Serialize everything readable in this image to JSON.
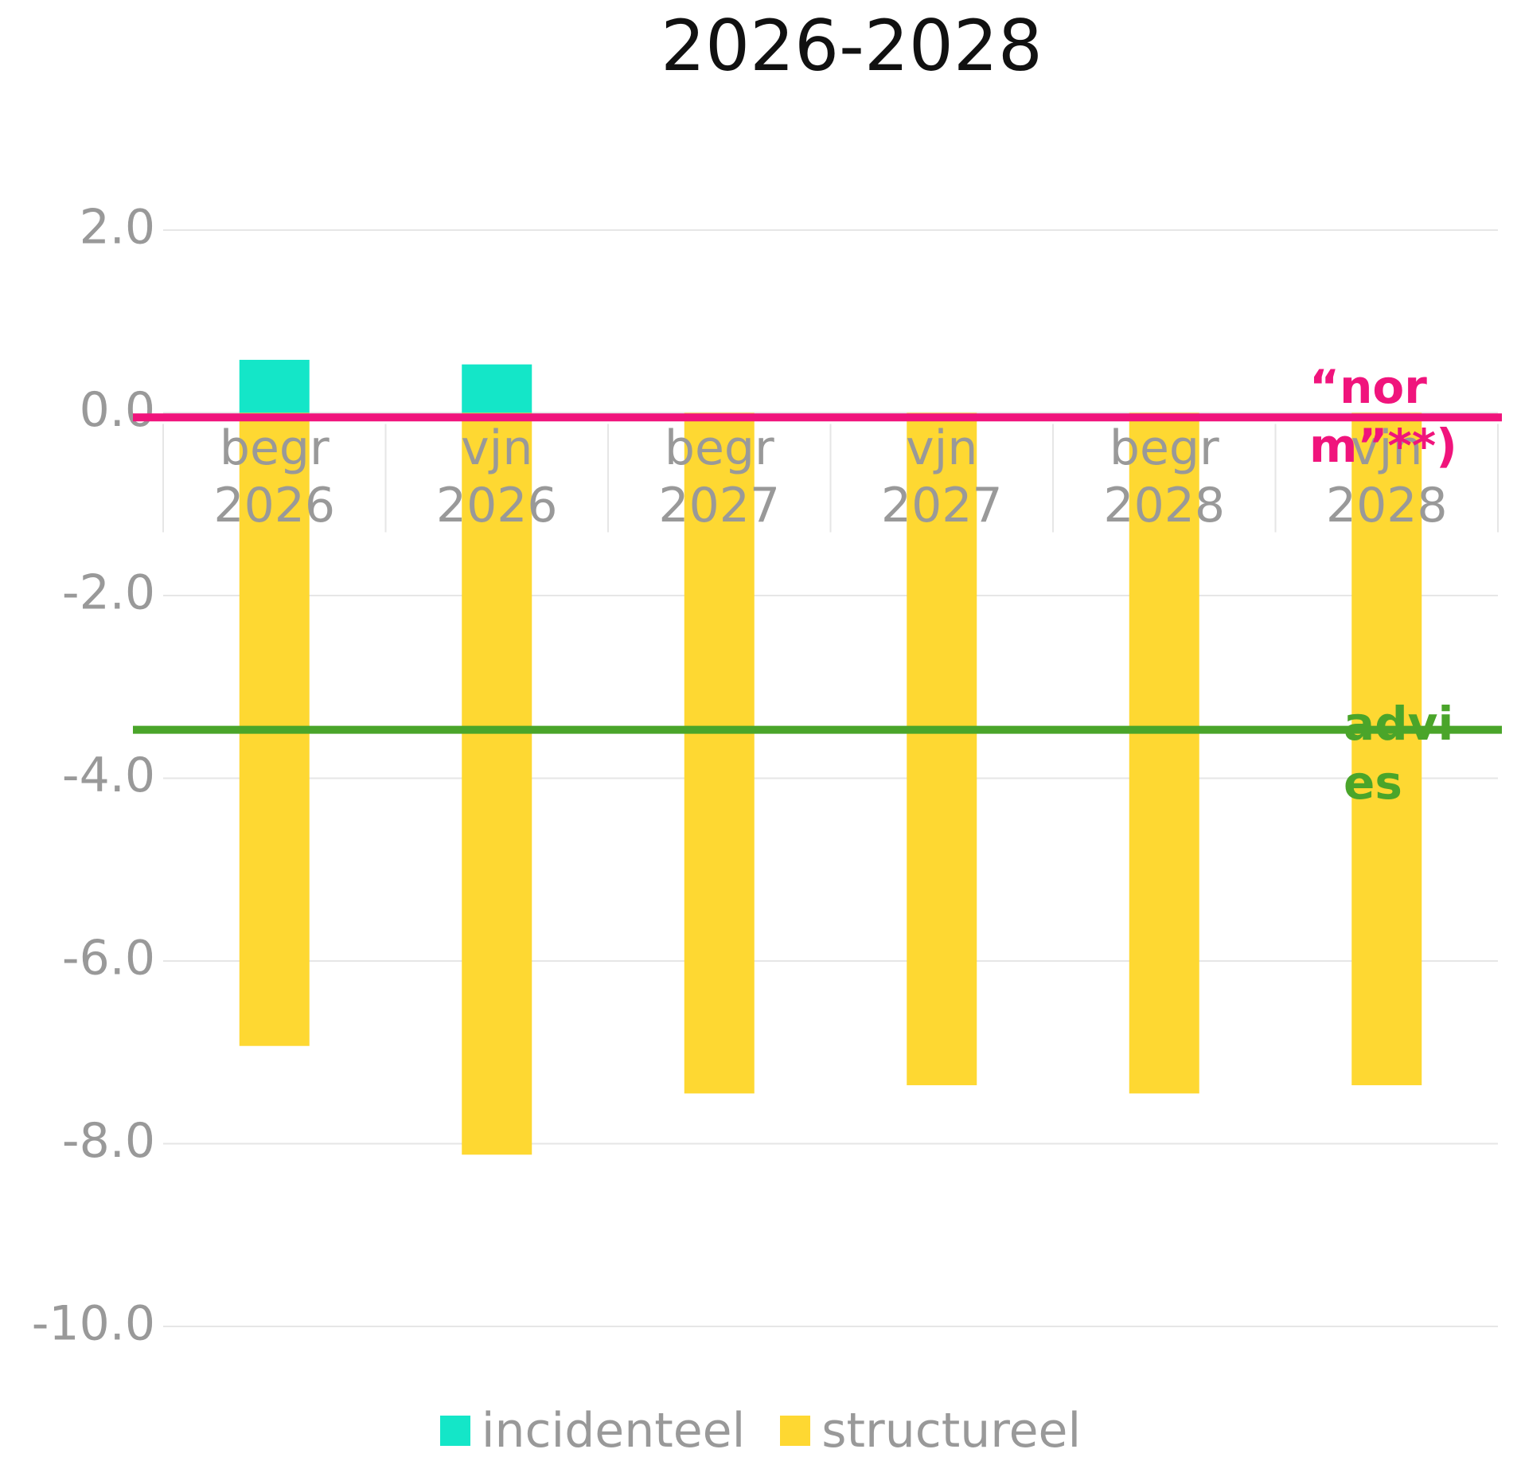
{
  "chart_data": {
    "type": "stacked_bar",
    "title": "2026-2028",
    "categories": [
      "begr 2026",
      "vjn 2026",
      "begr 2027",
      "vjn 2027",
      "begr 2028",
      "vjn 2028"
    ],
    "series": [
      {
        "name": "incidenteel",
        "color": "#14e6c8",
        "values": [
          0.58,
          0.53,
          0,
          0,
          0,
          0
        ]
      },
      {
        "name": "structureel",
        "color": "#fed832",
        "values": [
          -6.93,
          -8.12,
          -7.45,
          -7.36,
          -7.45,
          -7.36
        ]
      }
    ],
    "reference_lines": [
      {
        "label": "“norm”**)",
        "value": -0.05,
        "color": "#f0147c"
      },
      {
        "label": "advies",
        "value": -3.47,
        "color": "#4aa52a"
      }
    ],
    "ylim": [
      -10,
      2
    ],
    "yticks": [
      {
        "value": 2,
        "label": "2.0"
      },
      {
        "value": 0,
        "label": "0.0"
      },
      {
        "value": -2,
        "label": "-2.0"
      },
      {
        "value": -4,
        "label": "-4.0"
      },
      {
        "value": -6,
        "label": "-6.0"
      },
      {
        "value": -8,
        "label": "-8.0"
      },
      {
        "value": -10,
        "label": "-10.0"
      }
    ],
    "grid": true
  }
}
